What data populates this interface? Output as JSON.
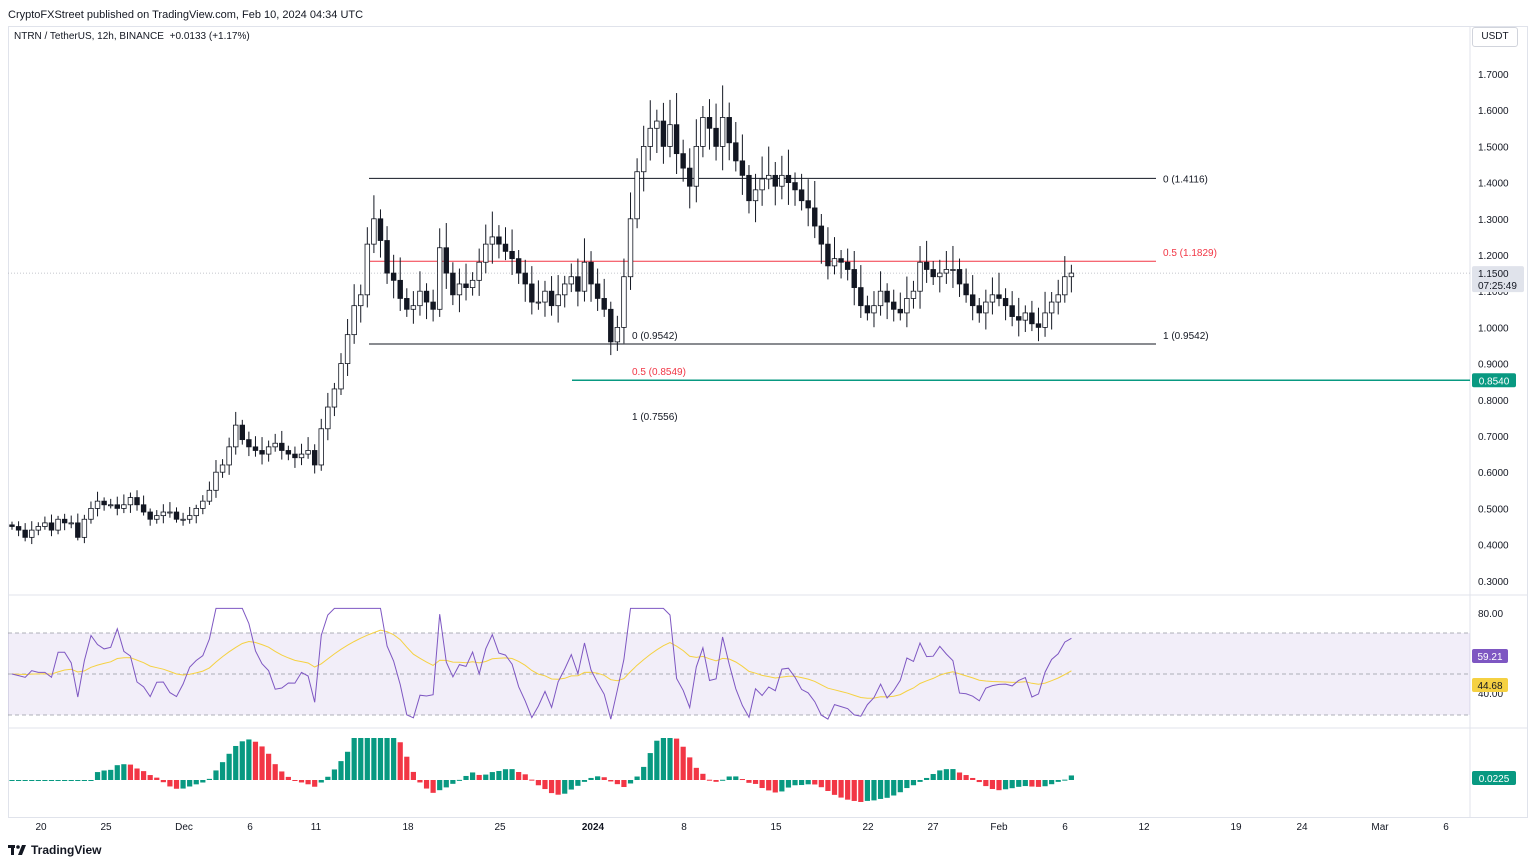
{
  "caption": "CryptoFXStreet published on TradingView.com, Feb 10, 2024 04:34 UTC",
  "symbol": "NTRN / TetherUS, 12h, BINANCE",
  "change": "+0.0133 (+1.17%)",
  "currency_button": "USDT",
  "footer_brand": "TradingView",
  "chart_data": {
    "type": "candlestick",
    "price_axis": {
      "ticks": [
        "1.7000",
        "1.6000",
        "1.5000",
        "1.4000",
        "1.3000",
        "1.2000",
        "1.1000",
        "1.0000",
        "0.9000",
        "0.8000",
        "0.7000",
        "0.6000",
        "0.5000",
        "0.4000",
        "0.3000"
      ]
    },
    "x_labels": [
      "20",
      "25",
      "Dec",
      "6",
      "11",
      "18",
      "25",
      "2024",
      "8",
      "15",
      "22",
      "27",
      "Feb",
      "6",
      "12",
      "19",
      "24",
      "Mar",
      "6"
    ],
    "last_price": {
      "value": "1.1500",
      "countdown": "07:25:49"
    },
    "horizontal_line": {
      "value": "0.8540"
    },
    "fib_levels": [
      {
        "label": "0 (1.4116)",
        "price": 1.4116,
        "color": "#131722"
      },
      {
        "label": "0.5 (1.1829)",
        "price": 1.1829,
        "color": "#f23645"
      },
      {
        "label": "1 (0.9542)",
        "price": 0.9542,
        "color": "#131722"
      },
      {
        "label": "0 (0.9542)",
        "price": 0.9542,
        "color": "#131722"
      },
      {
        "label": "0.5 (0.8549)",
        "price": 0.8549,
        "color": "#f23645"
      },
      {
        "label": "1 (0.7556)",
        "price": 0.7556,
        "color": "#131722"
      }
    ],
    "closes": [
      0.45,
      0.44,
      0.42,
      0.44,
      0.45,
      0.46,
      0.44,
      0.47,
      0.46,
      0.46,
      0.42,
      0.47,
      0.5,
      0.52,
      0.51,
      0.51,
      0.5,
      0.51,
      0.53,
      0.51,
      0.49,
      0.47,
      0.48,
      0.49,
      0.49,
      0.47,
      0.47,
      0.48,
      0.5,
      0.52,
      0.55,
      0.6,
      0.62,
      0.67,
      0.73,
      0.69,
      0.67,
      0.66,
      0.65,
      0.67,
      0.68,
      0.66,
      0.65,
      0.64,
      0.65,
      0.66,
      0.62,
      0.72,
      0.78,
      0.83,
      0.9,
      0.98,
      1.06,
      1.09,
      1.23,
      1.3,
      1.24,
      1.15,
      1.13,
      1.08,
      1.05,
      1.06,
      1.1,
      1.07,
      1.05,
      1.22,
      1.15,
      1.09,
      1.12,
      1.11,
      1.13,
      1.18,
      1.23,
      1.25,
      1.23,
      1.21,
      1.19,
      1.15,
      1.12,
      1.07,
      1.07,
      1.1,
      1.06,
      1.09,
      1.12,
      1.14,
      1.1,
      1.18,
      1.12,
      1.08,
      1.05,
      0.96,
      1.0,
      1.14,
      1.3,
      1.43,
      1.5,
      1.55,
      1.57,
      1.5,
      1.56,
      1.48,
      1.44,
      1.39,
      1.5,
      1.58,
      1.55,
      1.5,
      1.58,
      1.51,
      1.46,
      1.42,
      1.35,
      1.38,
      1.41,
      1.42,
      1.39,
      1.42,
      1.4,
      1.38,
      1.35,
      1.33,
      1.28,
      1.23,
      1.17,
      1.19,
      1.18,
      1.16,
      1.11,
      1.06,
      1.04,
      1.06,
      1.1,
      1.07,
      1.05,
      1.04,
      1.08,
      1.1,
      1.18,
      1.16,
      1.14,
      1.15,
      1.16,
      1.16,
      1.12,
      1.09,
      1.06,
      1.04,
      1.07,
      1.09,
      1.08,
      1.06,
      1.03,
      1.02,
      1.04,
      1.01,
      1.0,
      1.04,
      1.07,
      1.09,
      1.14,
      1.15
    ],
    "rsi": {
      "label": "59.21",
      "ma_label": "44.68",
      "ticks": [
        "80.00",
        "40.00"
      ]
    },
    "histogram": {
      "label": "0.0225"
    }
  }
}
